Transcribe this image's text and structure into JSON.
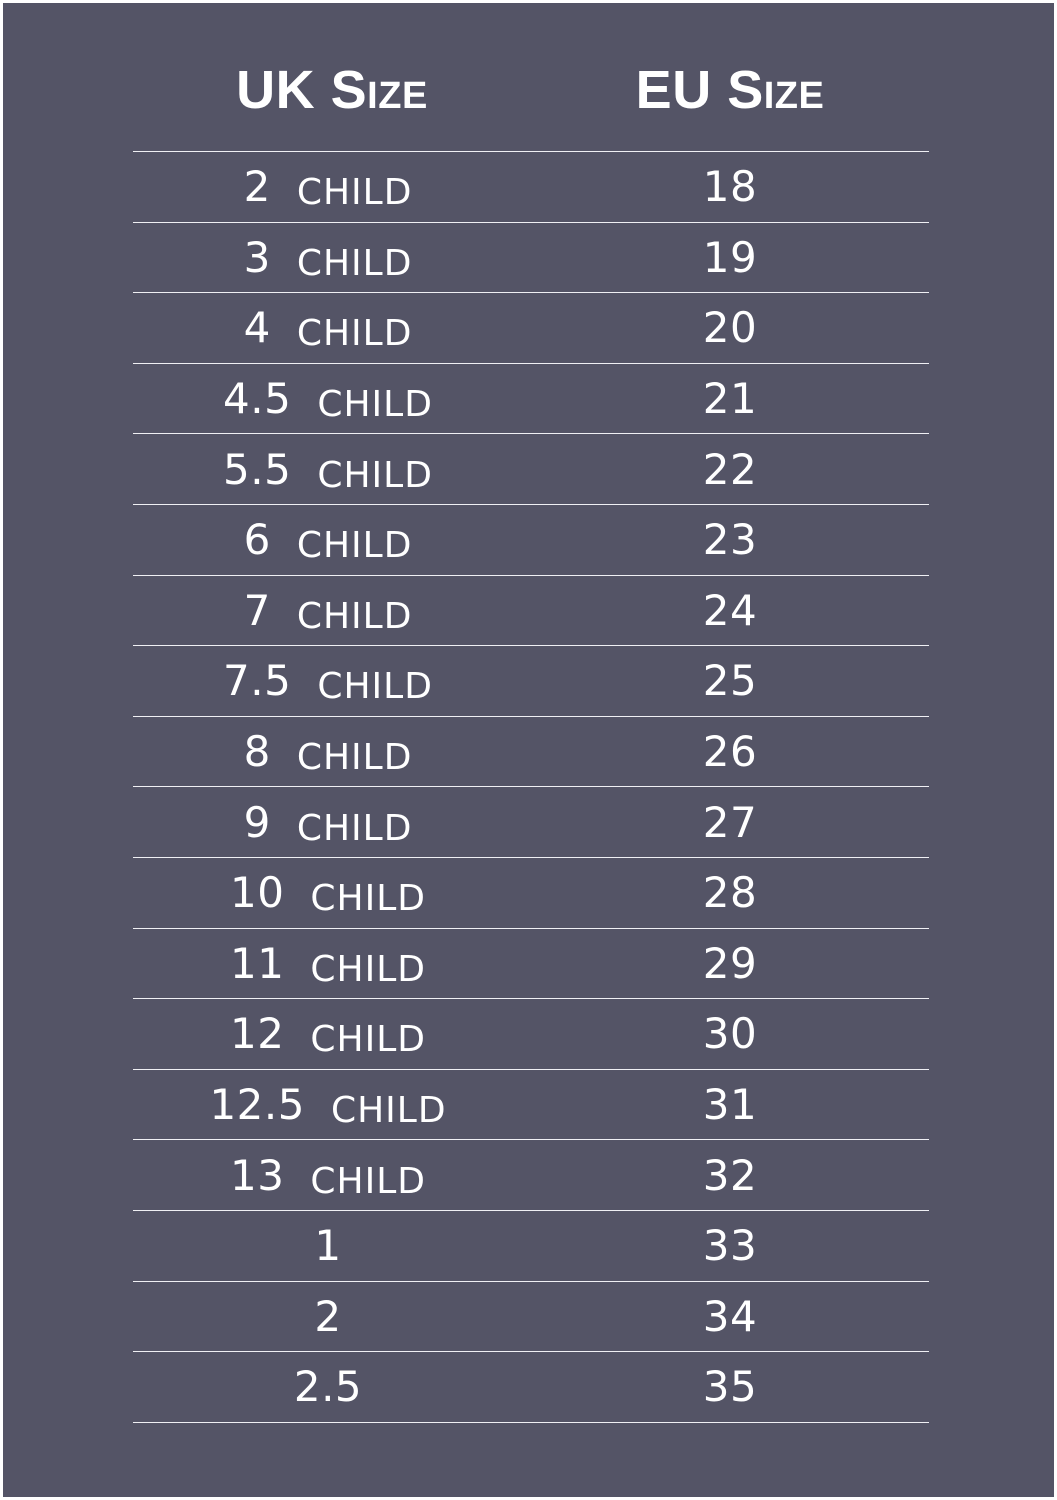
{
  "header": {
    "uk_label": "UK Size",
    "eu_label": "EU Size"
  },
  "rows": [
    {
      "uk": "2",
      "tag": "CHILD",
      "eu": "18"
    },
    {
      "uk": "3",
      "tag": "CHILD",
      "eu": "19"
    },
    {
      "uk": "4",
      "tag": "CHILD",
      "eu": "20"
    },
    {
      "uk": "4.5",
      "tag": "CHILD",
      "eu": "21"
    },
    {
      "uk": "5.5",
      "tag": "CHILD",
      "eu": "22"
    },
    {
      "uk": "6",
      "tag": "CHILD",
      "eu": "23"
    },
    {
      "uk": "7",
      "tag": "CHILD",
      "eu": "24"
    },
    {
      "uk": "7.5",
      "tag": "CHILD",
      "eu": "25"
    },
    {
      "uk": "8",
      "tag": "CHILD",
      "eu": "26"
    },
    {
      "uk": "9",
      "tag": "CHILD",
      "eu": "27"
    },
    {
      "uk": "10",
      "tag": "CHILD",
      "eu": "28"
    },
    {
      "uk": "11",
      "tag": "CHILD",
      "eu": "29"
    },
    {
      "uk": "12",
      "tag": "CHILD",
      "eu": "30"
    },
    {
      "uk": "12.5",
      "tag": "CHILD",
      "eu": "31"
    },
    {
      "uk": "13",
      "tag": "CHILD",
      "eu": "32"
    },
    {
      "uk": "1",
      "tag": "",
      "eu": "33"
    },
    {
      "uk": "2",
      "tag": "",
      "eu": "34"
    },
    {
      "uk": "2.5",
      "tag": "",
      "eu": "35"
    }
  ],
  "colors": {
    "background": "#545466",
    "text": "#ffffff",
    "rule": "#f0f0f4"
  }
}
